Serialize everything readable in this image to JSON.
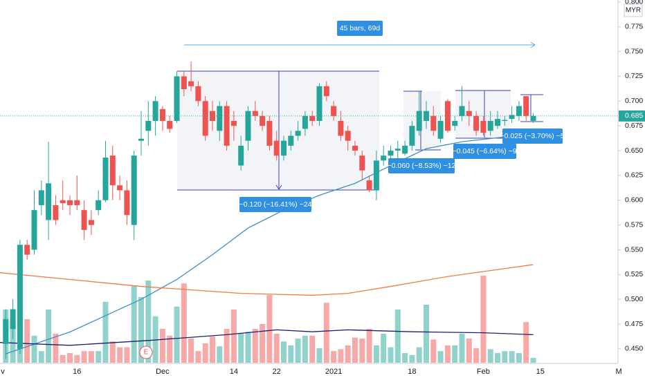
{
  "chart_data": {
    "type": "candlestick",
    "currency": "MYR",
    "event_marker": "E",
    "categories": [
      "v",
      null,
      null,
      null,
      null,
      null,
      null,
      null,
      null,
      null,
      null,
      "16",
      null,
      null,
      null,
      null,
      null,
      null,
      null,
      null,
      null,
      null,
      null,
      "Dec",
      null,
      null,
      null,
      null,
      null,
      null,
      null,
      null,
      null,
      "14",
      null,
      null,
      null,
      null,
      null,
      "22",
      null,
      null,
      null,
      null,
      null,
      null,
      null,
      "2021",
      null,
      null,
      null,
      null,
      null,
      null,
      null,
      null,
      null,
      null,
      "18",
      null,
      null,
      null,
      null,
      null,
      null,
      null,
      null,
      null,
      "Feb",
      null,
      null,
      null,
      null,
      null,
      null,
      null,
      "15",
      null,
      null,
      null,
      null,
      null,
      null,
      null,
      null,
      null,
      null,
      "M"
    ],
    "open": [
      null,
      0.455,
      0.47,
      0.45,
      0.555,
      0.55,
      0.595,
      0.58,
      0.595,
      0.6,
      0.6,
      0.6,
      0.59,
      0.58,
      0.59,
      0.6,
      0.645,
      0.615,
      0.61,
      0.575,
      0.66,
      0.67,
      0.68,
      0.692,
      0.68,
      0.68,
      0.725,
      0.72,
      0.715,
      0.7,
      0.69,
      0.67,
      0.695,
      0.68,
      0.635,
      0.66,
      0.69,
      0.685,
      0.68,
      0.66,
      0.645,
      0.655,
      0.665,
      0.672,
      0.685,
      0.68,
      0.715,
      0.695,
      0.68,
      0.67,
      0.655,
      0.645,
      0.62,
      0.61,
      0.64,
      0.645,
      0.65,
      0.647,
      0.655,
      0.67,
      0.68,
      0.685,
      0.662,
      0.7,
      0.675,
      0.685,
      0.69,
      0.685,
      0.68,
      0.67,
      0.675,
      0.68,
      0.682,
      0.685,
      0.705,
      0.68,
      null,
      null,
      null,
      null,
      null,
      null,
      null,
      null,
      null,
      null,
      null,
      null
    ],
    "high": [
      null,
      0.49,
      0.5,
      0.56,
      0.56,
      0.61,
      0.62,
      0.659,
      0.605,
      0.62,
      0.605,
      0.625,
      0.6,
      0.59,
      0.61,
      0.66,
      0.655,
      0.625,
      0.62,
      0.65,
      0.69,
      0.7,
      0.705,
      0.695,
      0.685,
      0.73,
      0.73,
      0.74,
      0.72,
      0.705,
      0.7,
      0.7,
      0.7,
      0.69,
      0.665,
      0.695,
      0.7,
      0.69,
      0.685,
      0.67,
      0.665,
      0.67,
      0.68,
      0.69,
      0.69,
      0.718,
      0.72,
      0.7,
      0.69,
      0.675,
      0.66,
      0.65,
      0.625,
      0.65,
      0.655,
      0.655,
      0.66,
      0.66,
      0.68,
      0.71,
      0.7,
      0.695,
      0.685,
      0.702,
      0.685,
      0.715,
      0.7,
      0.69,
      0.685,
      0.69,
      0.69,
      0.685,
      0.695,
      0.7,
      0.705,
      0.688,
      null,
      null,
      null,
      null,
      null,
      null,
      null,
      null,
      null,
      null,
      null,
      null
    ],
    "low": [
      null,
      0.44,
      0.46,
      0.445,
      0.54,
      0.545,
      0.585,
      0.56,
      0.575,
      0.59,
      0.585,
      0.59,
      0.56,
      0.565,
      0.585,
      0.598,
      0.6,
      0.6,
      0.575,
      0.56,
      0.645,
      0.655,
      0.665,
      0.67,
      0.668,
      0.678,
      0.705,
      0.71,
      0.695,
      0.66,
      0.67,
      0.66,
      0.65,
      0.66,
      0.63,
      0.65,
      0.68,
      0.67,
      0.65,
      0.64,
      0.64,
      0.65,
      0.66,
      0.665,
      0.675,
      0.675,
      0.7,
      0.68,
      0.66,
      0.65,
      0.645,
      0.62,
      0.608,
      0.6,
      0.635,
      0.64,
      0.64,
      0.645,
      0.65,
      0.665,
      0.672,
      0.665,
      0.658,
      0.668,
      0.67,
      0.68,
      0.675,
      0.665,
      0.665,
      0.665,
      0.672,
      0.675,
      0.678,
      0.68,
      0.68,
      0.678,
      null,
      null,
      null,
      null,
      null,
      null,
      null,
      null,
      null,
      null,
      null,
      null
    ],
    "close": [
      null,
      0.48,
      0.49,
      0.555,
      0.545,
      0.59,
      0.61,
      0.617,
      0.58,
      0.597,
      0.595,
      0.595,
      0.57,
      0.575,
      0.6,
      0.643,
      0.615,
      0.61,
      0.585,
      0.645,
      0.662,
      0.68,
      0.7,
      0.68,
      0.672,
      0.725,
      0.712,
      0.715,
      0.7,
      0.665,
      0.68,
      0.695,
      0.655,
      0.675,
      0.655,
      0.69,
      0.685,
      0.675,
      0.655,
      0.645,
      0.66,
      0.665,
      0.67,
      0.685,
      0.68,
      0.715,
      0.705,
      0.685,
      0.665,
      0.66,
      0.65,
      0.63,
      0.61,
      0.64,
      0.645,
      0.65,
      0.652,
      0.655,
      0.675,
      0.69,
      0.69,
      0.67,
      0.68,
      0.67,
      0.68,
      0.695,
      0.685,
      0.67,
      0.668,
      0.68,
      0.682,
      0.681,
      0.686,
      0.695,
      0.685,
      0.685,
      null,
      null,
      null,
      null,
      null,
      null,
      null,
      null,
      null,
      null,
      null,
      null
    ],
    "volume": [
      null,
      55,
      43,
      39,
      45,
      28,
      12,
      55,
      30,
      8,
      10,
      8,
      12,
      12,
      12,
      63,
      22,
      16,
      16,
      80,
      68,
      85,
      48,
      35,
      28,
      58,
      82,
      25,
      12,
      20,
      27,
      17,
      35,
      55,
      30,
      32,
      35,
      40,
      70,
      30,
      22,
      18,
      25,
      28,
      28,
      15,
      62,
      12,
      14,
      18,
      26,
      25,
      35,
      18,
      30,
      16,
      55,
      10,
      8,
      16,
      60,
      24,
      12,
      18,
      18,
      30,
      25,
      15,
      90,
      14,
      10,
      12,
      12,
      10,
      42,
      5,
      null,
      null,
      null,
      null,
      null,
      null,
      null,
      null,
      null,
      null,
      null,
      null
    ],
    "up_color": "#26a69a",
    "down_color": "#ef5350",
    "lines": [
      {
        "color": "#3b8fc4",
        "axis": "y",
        "x": [
          1,
          10,
          20,
          25,
          30,
          35,
          40,
          45,
          50,
          55,
          60,
          65,
          70,
          75
        ],
        "values": [
          0.445,
          0.467,
          0.5,
          0.52,
          0.545,
          0.572,
          0.59,
          0.605,
          0.617,
          0.635,
          0.652,
          0.659,
          0.663,
          0.667
        ]
      },
      {
        "color": "#f07b45",
        "axis": "y",
        "x": [
          0,
          10,
          20,
          34,
          44,
          49,
          55,
          63,
          70,
          75
        ],
        "values": [
          0.527,
          0.52,
          0.513,
          0.506,
          0.504,
          0.506,
          0.513,
          0.523,
          0.53,
          0.535
        ]
      },
      {
        "color": "#1a1f6b",
        "axis": "volume",
        "x": [
          0,
          10,
          21,
          32,
          39,
          44,
          49,
          58,
          68,
          75
        ],
        "values": [
          21,
          18,
          23,
          29,
          34,
          32,
          34,
          32,
          31,
          29
        ]
      }
    ],
    "ylim": [
      0.436,
      0.802
    ],
    "volume_lim": [
      0,
      100
    ],
    "yticks": [
      {
        "value": 0.45,
        "label": "0.450"
      },
      {
        "value": 0.475,
        "label": "0.475"
      },
      {
        "value": 0.5,
        "label": "0.500"
      },
      {
        "value": 0.525,
        "label": "0.525"
      },
      {
        "value": 0.55,
        "label": "0.550"
      },
      {
        "value": 0.575,
        "label": "0.575"
      },
      {
        "value": 0.6,
        "label": "0.600"
      },
      {
        "value": 0.625,
        "label": "0.625"
      },
      {
        "value": 0.65,
        "label": "0.650"
      },
      {
        "value": 0.675,
        "label": "0.675"
      },
      {
        "value": 0.7,
        "label": "0.700"
      },
      {
        "value": 0.725,
        "label": "0.725"
      },
      {
        "value": 0.75,
        "label": "0.750"
      },
      {
        "value": 0.775,
        "label": "0.775"
      },
      {
        "value": 0.8,
        "label": "0.800"
      }
    ],
    "last_price": {
      "value": 0.685,
      "label": "0.685"
    },
    "annotations": [
      "45 bars, 69d",
      "−0.120 (−16.41%) −24",
      "−0.060 (−8.53%) −12",
      "−0.045 (−6.64%) −9",
      "−0.025 (−3.70%) −5"
    ]
  }
}
